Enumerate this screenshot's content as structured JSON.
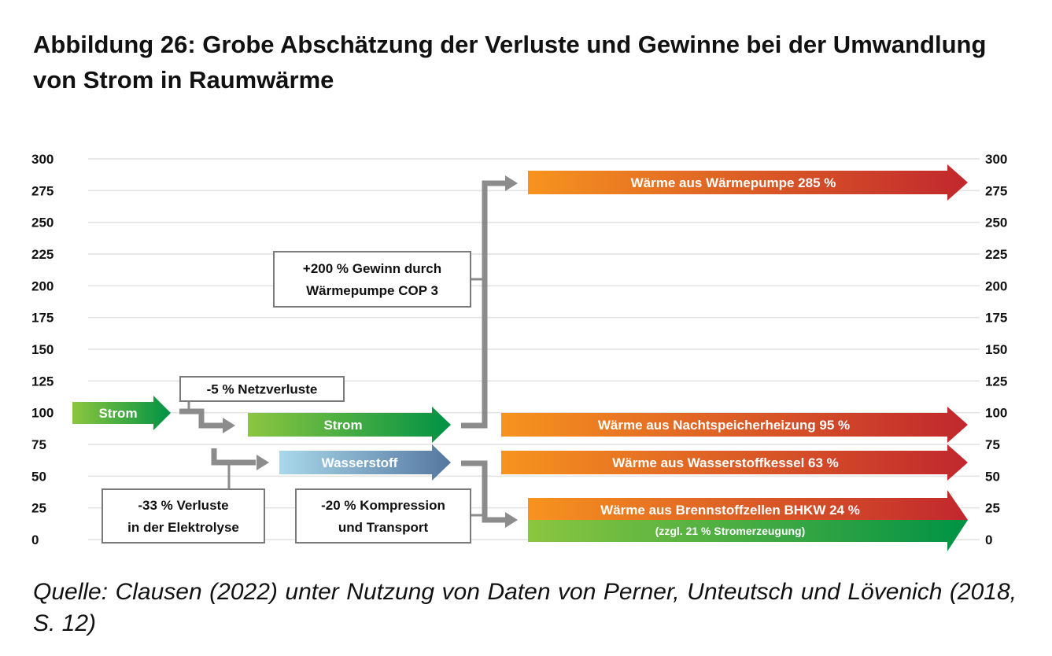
{
  "title_line1": "Abbildung 26: Grobe Abschätzung der Verluste und Gewinne bei der Umwandlung",
  "title_line2": "von Strom in Raumwärme",
  "source": "Quelle: Clausen (2022) unter Nutzung von Daten von Perner, Unteutsch und Lövenich (2018, S. 12)",
  "chart_data": {
    "type": "flow",
    "y_ticks": [
      "300",
      "275",
      "250",
      "225",
      "200",
      "175",
      "150",
      "125",
      "100",
      "75",
      "50",
      "25",
      "0"
    ],
    "ylim": [
      0,
      300
    ],
    "colors": {
      "strom_start": "#8cc63f",
      "strom_end": "#009245",
      "h2_start": "#a8d8ea",
      "h2_end": "#5577a0",
      "heat_start": "#f7931e",
      "heat_end": "#c1272d",
      "connector": "#8c8c8c",
      "grid": "#e2e2e2"
    },
    "flows": [
      {
        "id": "strom-input",
        "label": "Strom",
        "value": 100,
        "kind": "strom"
      },
      {
        "id": "strom-net",
        "label": "Strom",
        "value": 95,
        "kind": "strom"
      },
      {
        "id": "wasserstoff",
        "label": "Wasserstoff",
        "value": 67,
        "kind": "h2"
      },
      {
        "id": "heat-waermepumpe",
        "label": "Wärme aus Wärmepumpe 285 %",
        "value": 285,
        "kind": "heat"
      },
      {
        "id": "heat-nachtspeicher",
        "label": "Wärme aus Nachtspeicherheizung 95 %",
        "value": 95,
        "kind": "heat"
      },
      {
        "id": "heat-wasserstoffkessel",
        "label": "Wärme aus Wasserstoffkessel 63 %",
        "value": 63,
        "kind": "heat"
      },
      {
        "id": "heat-bhkw",
        "label": "Wärme aus Brennstoffzellen BHKW 24 %",
        "value": 24,
        "kind": "heat"
      },
      {
        "id": "strom-bhkw",
        "label": "(zzgl. 21 % Stromerzeugung)",
        "value": 21,
        "kind": "strom"
      }
    ],
    "boxes": [
      {
        "id": "netzverluste",
        "lines": [
          "-5 % Netzverluste"
        ]
      },
      {
        "id": "waermepumpe-gewinn",
        "lines": [
          "+200 % Gewinn durch",
          "Wärmepumpe COP 3"
        ]
      },
      {
        "id": "elektrolyse",
        "lines": [
          "-33 % Verluste",
          "in  der Elektrolyse"
        ]
      },
      {
        "id": "kompression",
        "lines": [
          "-20 % Kompression",
          "und Transport"
        ]
      }
    ]
  }
}
